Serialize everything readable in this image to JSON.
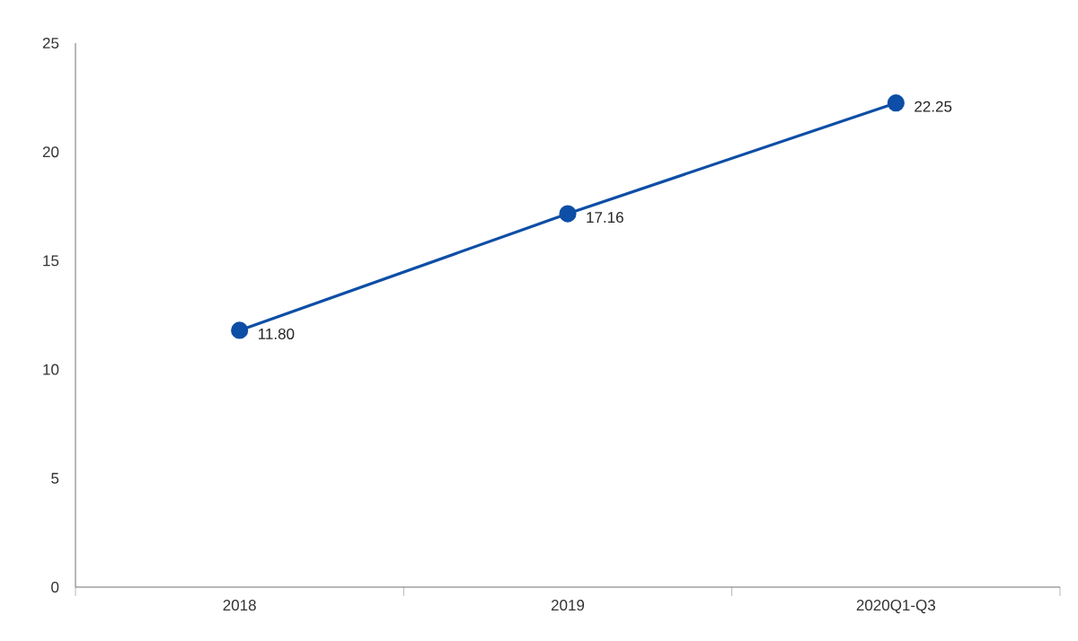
{
  "chart_data": {
    "type": "line",
    "categories": [
      "2018",
      "2019",
      "2020Q1-Q3"
    ],
    "series": [
      {
        "color": "#0d4ea6",
        "values": [
          11.8,
          17.16,
          22.25
        ],
        "value_labels": [
          "11.80",
          "17.16",
          "22.25"
        ]
      }
    ],
    "ylim": [
      0,
      25
    ],
    "yticks": [
      0,
      5,
      10,
      15,
      20,
      25
    ],
    "marker": "circle",
    "line_style": "solid"
  }
}
